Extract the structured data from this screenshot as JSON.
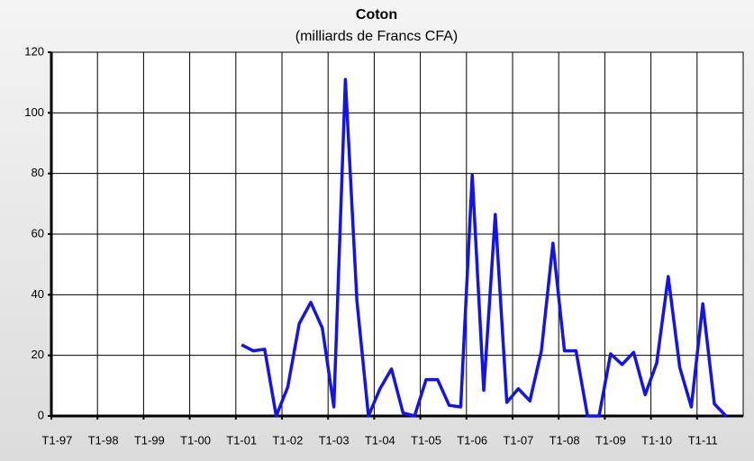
{
  "chart_data": {
    "type": "line",
    "title": "Coton",
    "subtitle": "(milliards de Francs CFA)",
    "categories": [
      "T1-97",
      null,
      null,
      null,
      "T1-98",
      null,
      null,
      null,
      "T1-99",
      null,
      null,
      null,
      "T1-00",
      null,
      null,
      null,
      "T1-01",
      null,
      null,
      null,
      "T1-02",
      null,
      null,
      null,
      "T1-03",
      null,
      null,
      null,
      "T1-04",
      null,
      null,
      null,
      "T1-05",
      null,
      null,
      null,
      "T1-06",
      null,
      null,
      null,
      "T1-07",
      null,
      null,
      null,
      "T1-08",
      null,
      null,
      null,
      "T1-09",
      null,
      null,
      null,
      "T1-10",
      null,
      null,
      null,
      "T1-11",
      null,
      null,
      null
    ],
    "series": [
      {
        "color": "#1414e6",
        "values": [
          null,
          null,
          null,
          null,
          null,
          null,
          null,
          null,
          null,
          null,
          null,
          null,
          null,
          null,
          null,
          null,
          23.5,
          21.5,
          22,
          0,
          9.5,
          30.5,
          37.5,
          29,
          3,
          111,
          38,
          0,
          9,
          15.5,
          1,
          0,
          12,
          12,
          3.5,
          3,
          79.5,
          8.5,
          66.5,
          4.5,
          9,
          5,
          21.5,
          57,
          21.5,
          21.5,
          0,
          0,
          20.5,
          17,
          21,
          7,
          17.5,
          46,
          16,
          3,
          37,
          4,
          0,
          null
        ]
      }
    ],
    "ylim": [
      0,
      120
    ],
    "yticks": [
      0,
      20,
      40,
      60,
      80,
      100,
      120
    ],
    "grid": true
  }
}
